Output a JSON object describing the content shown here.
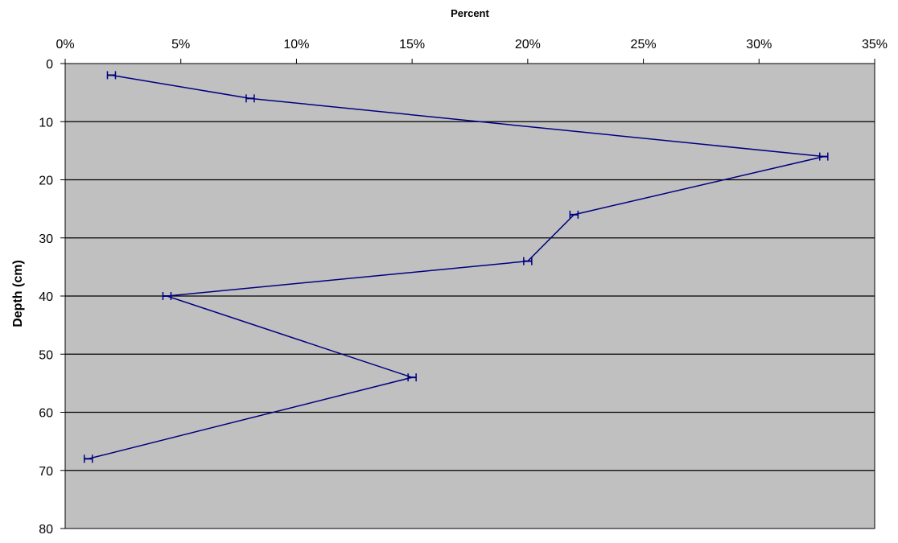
{
  "chart_data": {
    "type": "line",
    "orientation": "depth-profile",
    "title": "",
    "xlabel": "Percent",
    "ylabel": "Depth (cm)",
    "x_axis_position": "top",
    "y_axis_reversed": true,
    "xlim": [
      0,
      35
    ],
    "ylim": [
      0,
      80
    ],
    "x_ticks": [
      "0%",
      "5%",
      "10%",
      "15%",
      "20%",
      "25%",
      "30%",
      "35%"
    ],
    "y_ticks": [
      "0",
      "10",
      "20",
      "30",
      "40",
      "50",
      "60",
      "70",
      "80"
    ],
    "grid": "horizontal",
    "legend": "none",
    "colors": {
      "plot_background": "#c0c0c0",
      "line": "#000080",
      "grid": "#000000"
    },
    "series": [
      {
        "x": [
          2,
          8,
          32.8,
          22,
          20,
          4.4,
          15,
          1
        ],
        "y": [
          2,
          6,
          16,
          26,
          34,
          40,
          54,
          68
        ]
      }
    ]
  }
}
